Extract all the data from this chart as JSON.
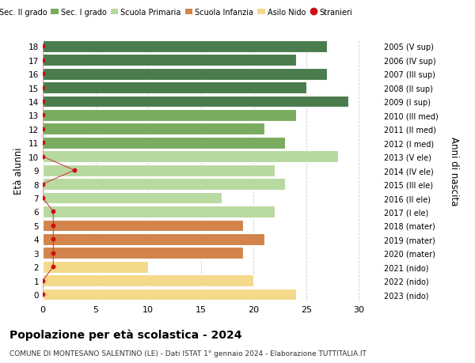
{
  "ages": [
    18,
    17,
    16,
    15,
    14,
    13,
    12,
    11,
    10,
    9,
    8,
    7,
    6,
    5,
    4,
    3,
    2,
    1,
    0
  ],
  "right_labels": [
    "2005 (V sup)",
    "2006 (IV sup)",
    "2007 (III sup)",
    "2008 (II sup)",
    "2009 (I sup)",
    "2010 (III med)",
    "2011 (II med)",
    "2012 (I med)",
    "2013 (V ele)",
    "2014 (IV ele)",
    "2015 (III ele)",
    "2016 (II ele)",
    "2017 (I ele)",
    "2018 (mater)",
    "2019 (mater)",
    "2020 (mater)",
    "2021 (nido)",
    "2022 (nido)",
    "2023 (nido)"
  ],
  "bar_values": [
    27,
    24,
    27,
    25,
    29,
    24,
    21,
    23,
    28,
    22,
    23,
    17,
    22,
    19,
    21,
    19,
    10,
    20,
    24
  ],
  "bar_colors": [
    "#4a7c4e",
    "#4a7c4e",
    "#4a7c4e",
    "#4a7c4e",
    "#4a7c4e",
    "#7aab5e",
    "#7aab5e",
    "#7aab5e",
    "#b8d9a0",
    "#b8d9a0",
    "#b8d9a0",
    "#b8d9a0",
    "#b8d9a0",
    "#d2844a",
    "#d2844a",
    "#d2844a",
    "#f5d98a",
    "#f5d98a",
    "#f5d98a"
  ],
  "stranieri_x": [
    0,
    0,
    0,
    0,
    0,
    0,
    0,
    0,
    0,
    3,
    0,
    0,
    1,
    1,
    1,
    1,
    1,
    0,
    0
  ],
  "xlim": [
    0,
    32
  ],
  "xticks": [
    0,
    5,
    10,
    15,
    20,
    25,
    30
  ],
  "ylabel": "Età alunni",
  "right_ylabel": "Anni di nascita",
  "legend_labels": [
    "Sec. II grado",
    "Sec. I grado",
    "Scuola Primaria",
    "Scuola Infanzia",
    "Asilo Nido",
    "Stranieri"
  ],
  "legend_colors": [
    "#4a7c4e",
    "#7aab5e",
    "#b8d9a0",
    "#d2844a",
    "#f5d98a",
    "#cc1111"
  ],
  "title": "Popolazione per età scolastica - 2024",
  "subtitle": "COMUNE DI MONTESANO SALENTINO (LE) - Dati ISTAT 1° gennaio 2024 - Elaborazione TUTTITALIA.IT",
  "bg_color": "#ffffff",
  "grid_color": "#cccccc",
  "bar_height": 0.85
}
